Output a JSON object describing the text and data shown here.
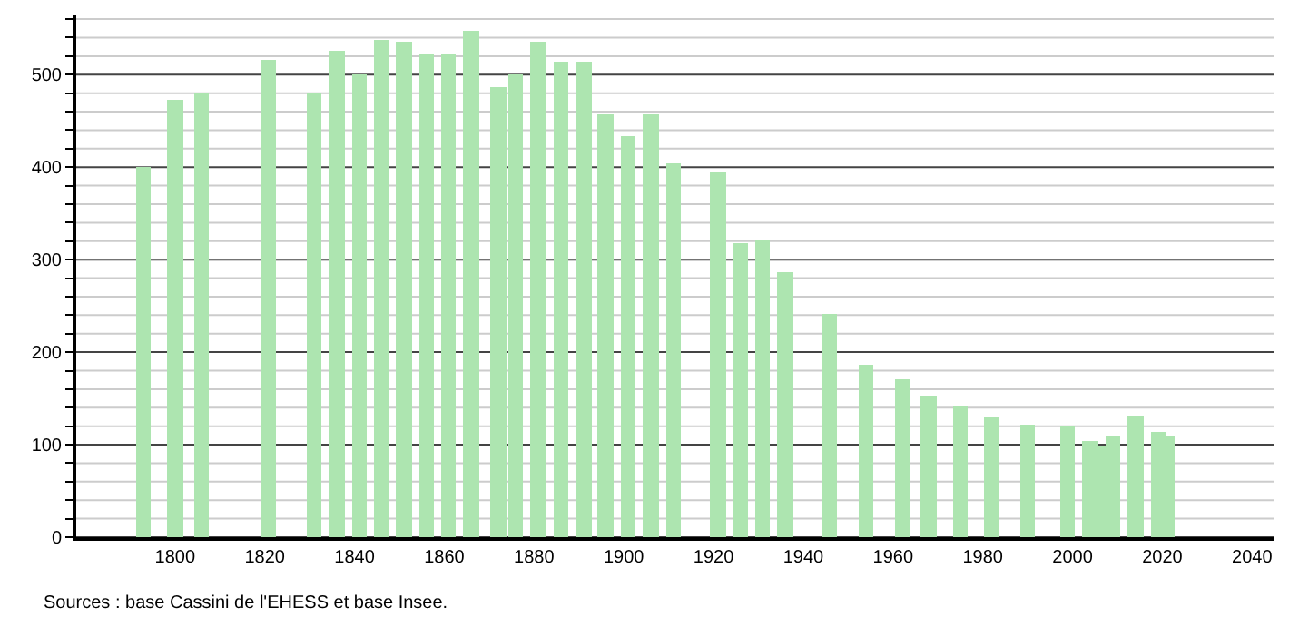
{
  "chart_data": {
    "type": "bar",
    "x": [
      1793,
      1800,
      1806,
      1821,
      1831,
      1836,
      1841,
      1846,
      1851,
      1856,
      1861,
      1866,
      1872,
      1876,
      1881,
      1886,
      1891,
      1896,
      1901,
      1906,
      1911,
      1921,
      1926,
      1931,
      1936,
      1946,
      1954,
      1962,
      1968,
      1975,
      1982,
      1990,
      1999,
      2004,
      2006,
      2009,
      2014,
      2019,
      2021
    ],
    "values": [
      400,
      473,
      480,
      516,
      480,
      526,
      500,
      538,
      536,
      521,
      521,
      548,
      487,
      500,
      536,
      514,
      514,
      458,
      434,
      458,
      405,
      395,
      318,
      322,
      287,
      242,
      186,
      171,
      153,
      141,
      129,
      122,
      120,
      104,
      99,
      110,
      131,
      113,
      110
    ],
    "color": "#ade5b0",
    "xlim": [
      1778,
      2045
    ],
    "xticks": [
      1800,
      1820,
      1840,
      1860,
      1880,
      1900,
      1920,
      1940,
      1960,
      1980,
      2000,
      2020,
      2040
    ],
    "ylim": [
      0,
      565
    ],
    "yticks": [
      0,
      {
        "value": 20,
        "label": null
      },
      {
        "value": 40,
        "label": null
      },
      {
        "value": 60,
        "label": null
      },
      {
        "value": 80,
        "label": null
      },
      100,
      {
        "value": 120,
        "label": null
      },
      {
        "value": 140,
        "label": null
      },
      {
        "value": 160,
        "label": null
      },
      {
        "value": 180,
        "label": null
      },
      200,
      {
        "value": 220,
        "label": null
      },
      {
        "value": 240,
        "label": null
      },
      {
        "value": 260,
        "label": null
      },
      {
        "value": 280,
        "label": null
      },
      300,
      {
        "value": 320,
        "label": null
      },
      {
        "value": 340,
        "label": null
      },
      {
        "value": 360,
        "label": null
      },
      {
        "value": 380,
        "label": null
      },
      400,
      {
        "value": 420,
        "label": null
      },
      {
        "value": 440,
        "label": null
      },
      {
        "value": 460,
        "label": null
      },
      {
        "value": 480,
        "label": null
      },
      500,
      {
        "value": 520,
        "label": null
      },
      {
        "value": 540,
        "label": null
      },
      {
        "value": 560,
        "label": null
      }
    ],
    "grid": "y",
    "annotations": [
      "Sources : base Cassini de l'EHESS et base Insee."
    ]
  }
}
